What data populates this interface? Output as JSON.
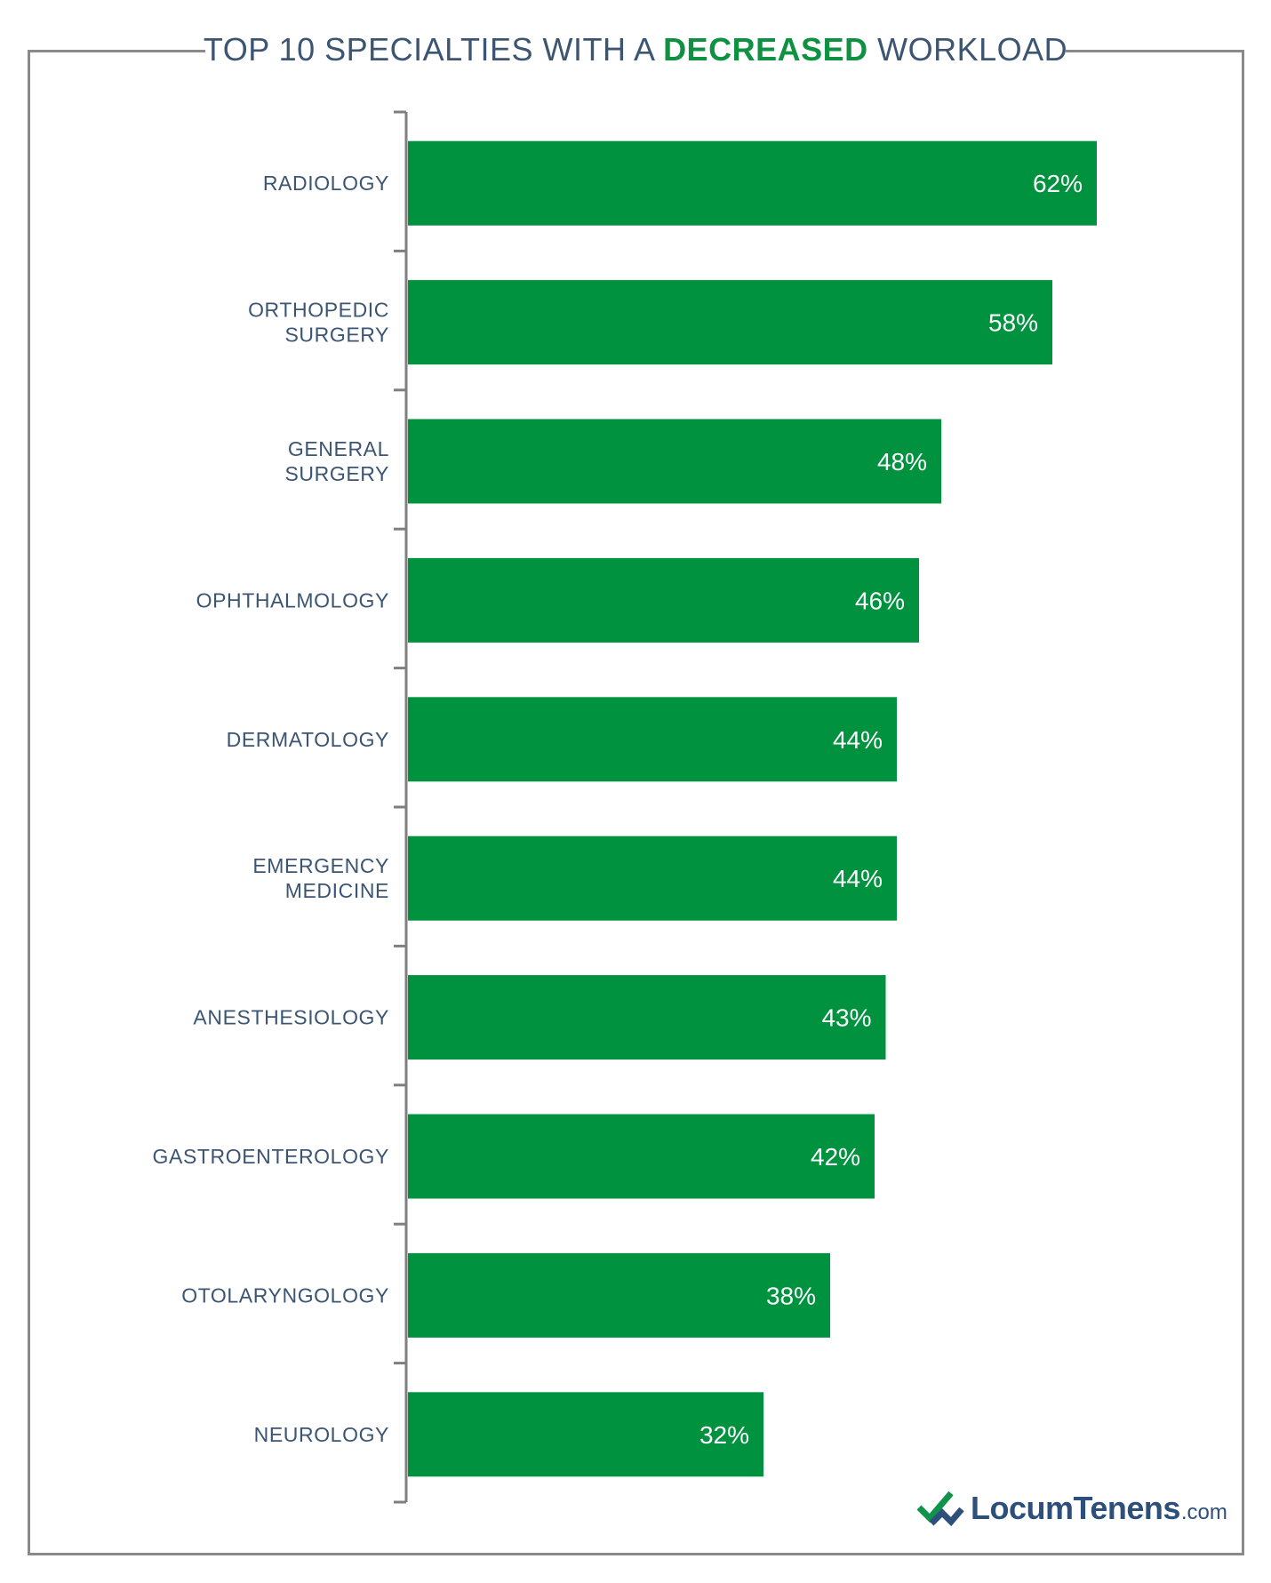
{
  "title": {
    "prefix": "TOP 10 SPECIALTIES WITH A ",
    "highlight": "DECREASED",
    "suffix": " WORKLOAD"
  },
  "colors": {
    "bar": "#00923f",
    "title_text": "#3b5573",
    "highlight": "#0f9142",
    "axis": "#7f7f7f"
  },
  "chart_data": {
    "type": "bar",
    "orientation": "horizontal",
    "title": "TOP 10 SPECIALTIES WITH A DECREASED WORKLOAD",
    "categories": [
      [
        "RADIOLOGY"
      ],
      [
        "ORTHOPEDIC",
        "SURGERY"
      ],
      [
        "GENERAL",
        "SURGERY"
      ],
      [
        "OPHTHALMOLOGY"
      ],
      [
        "DERMATOLOGY"
      ],
      [
        "EMERGENCY",
        "MEDICINE"
      ],
      [
        "ANESTHESIOLOGY"
      ],
      [
        "GASTROENTEROLOGY"
      ],
      [
        "OTOLARYNGOLOGY"
      ],
      [
        "NEUROLOGY"
      ]
    ],
    "values": [
      62,
      58,
      48,
      46,
      44,
      44,
      43,
      42,
      38,
      32
    ],
    "value_labels": [
      "62%",
      "58%",
      "48%",
      "46%",
      "44%",
      "44%",
      "43%",
      "42%",
      "38%",
      "32%"
    ],
    "unit": "%",
    "xlim": [
      0,
      100
    ],
    "grid": false
  },
  "logo": {
    "name": "Locum",
    "name2": "Tenens",
    "suffix": ".com",
    "icon": "checkmark-arrows-icon"
  }
}
